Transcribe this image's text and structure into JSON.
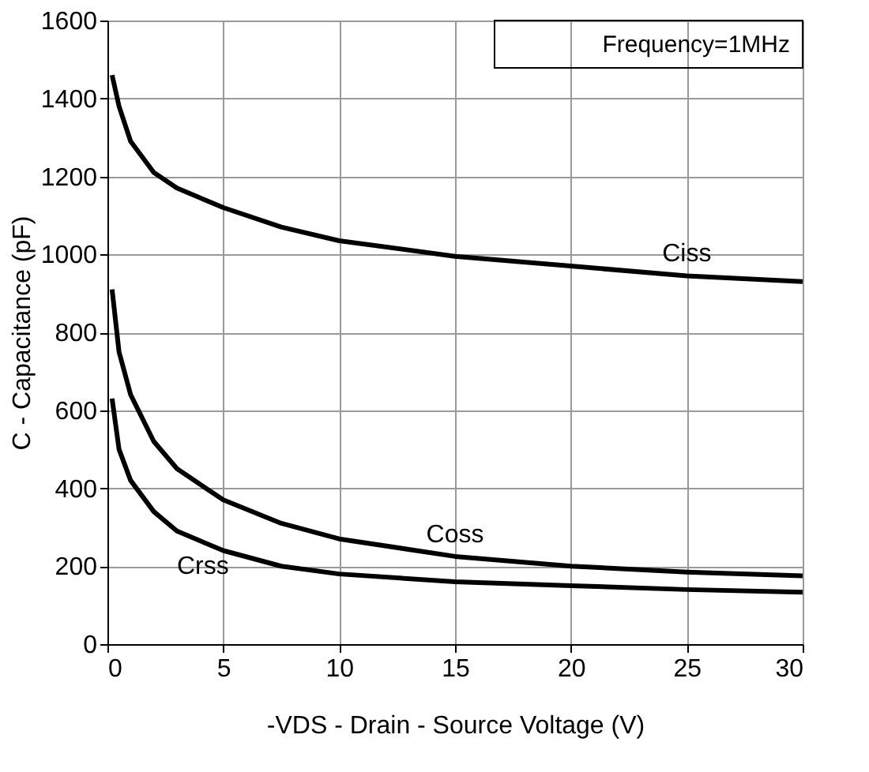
{
  "chart_data": {
    "type": "line",
    "xlabel": "-VDS - Drain - Source Voltage (V)",
    "ylabel": "C - Capacitance (pF)",
    "annotations": [
      "Frequency=1MHz"
    ],
    "xlim": [
      0,
      30
    ],
    "xticks": [
      0,
      5,
      10,
      15,
      20,
      25,
      30
    ],
    "ylim": [
      0,
      1600
    ],
    "yticks": [
      0,
      200,
      400,
      600,
      800,
      1000,
      1200,
      1400,
      1600
    ],
    "grid": true,
    "legend": false,
    "marker": "none",
    "line_style": "solid",
    "x": [
      0.2,
      0.5,
      1,
      2,
      3,
      5,
      7.5,
      10,
      15,
      20,
      25,
      30
    ],
    "series": [
      {
        "name": "Ciss",
        "color": "#000000",
        "values": [
          1460,
          1380,
          1290,
          1210,
          1170,
          1120,
          1070,
          1035,
          995,
          970,
          945,
          930
        ]
      },
      {
        "name": "Coss",
        "color": "#000000",
        "values": [
          910,
          750,
          640,
          520,
          450,
          370,
          310,
          270,
          225,
          200,
          185,
          175
        ]
      },
      {
        "name": "Crss",
        "color": "#000000",
        "values": [
          630,
          500,
          420,
          340,
          290,
          240,
          200,
          180,
          160,
          150,
          140,
          133
        ]
      }
    ]
  }
}
